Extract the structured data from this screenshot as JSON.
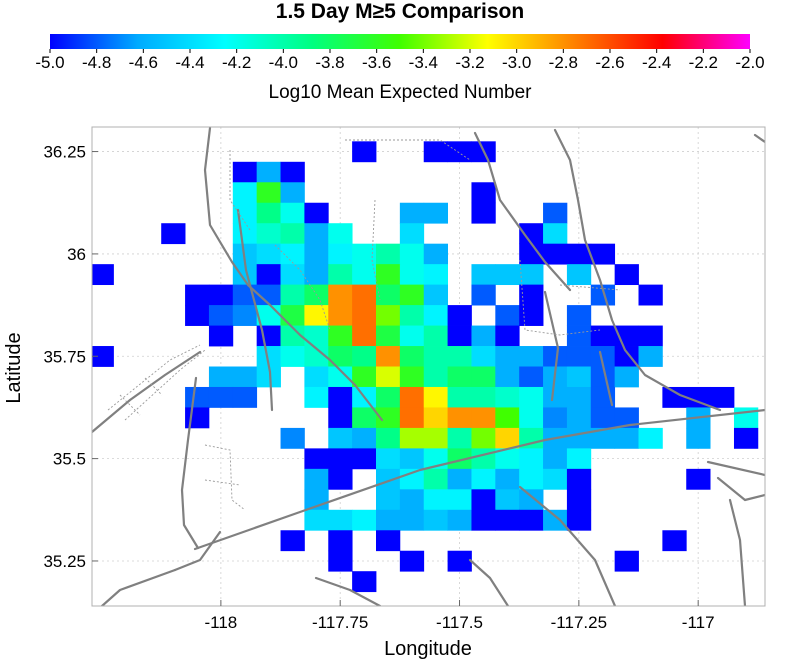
{
  "chart_data": {
    "type": "heatmap",
    "title": "1.5 Day M≥5 Comparison",
    "xlabel": "Longitude",
    "ylabel": "Latitude",
    "xlim": [
      -118.27,
      -116.86
    ],
    "ylim": [
      35.14,
      36.31
    ],
    "xticks": [
      -118,
      -117.75,
      -117.5,
      -117.25,
      -117
    ],
    "xtick_labels": [
      "-118",
      "-117.75",
      "-117.5",
      "-117.25",
      "-117"
    ],
    "yticks": [
      35.25,
      35.5,
      35.75,
      36,
      36.25
    ],
    "ytick_labels": [
      "35.25",
      "35.5",
      "35.75",
      "36",
      "36.25"
    ],
    "grid": true,
    "cell_size_deg": 0.05,
    "colorbar": {
      "label": "Log10 Mean Expected Number",
      "range": [
        -5.0,
        -2.0
      ],
      "ticks": [
        -5.0,
        -4.8,
        -4.6,
        -4.4,
        -4.2,
        -4.0,
        -3.8,
        -3.6,
        -3.4,
        -3.2,
        -3.0,
        -2.8,
        -2.6,
        -2.4,
        -2.2,
        -2.0
      ],
      "tick_labels": [
        "-5.0",
        "-4.8",
        "-4.6",
        "-4.4",
        "-4.2",
        "-4.0",
        "-3.8",
        "-3.6",
        "-3.4",
        "-3.2",
        "-3.0",
        "-2.8",
        "-2.6",
        "-2.4",
        "-2.2",
        "-2.0"
      ],
      "colors": [
        "#0000ff",
        "#00aaff",
        "#00ffff",
        "#00ff80",
        "#40ff00",
        "#ffff00",
        "#ff8000",
        "#ff0000",
        "#ff00ff"
      ]
    },
    "x": [
      -118.25,
      -118.2,
      -118.15,
      -118.1,
      -118.05,
      -118.0,
      -117.95,
      -117.9,
      -117.85,
      -117.8,
      -117.75,
      -117.7,
      -117.65,
      -117.6,
      -117.55,
      -117.5,
      -117.45,
      -117.4,
      -117.35,
      -117.3,
      -117.25,
      -117.2,
      -117.15,
      -117.1,
      -117.05,
      -117.0,
      -116.95,
      -116.9
    ],
    "y": [
      36.25,
      36.2,
      36.15,
      36.1,
      36.05,
      36.0,
      35.95,
      35.9,
      35.85,
      35.8,
      35.75,
      35.7,
      35.65,
      35.6,
      35.55,
      35.5,
      35.45,
      35.4,
      35.35,
      35.3,
      35.25,
      35.2
    ],
    "values": [
      [
        null,
        null,
        null,
        null,
        null,
        null,
        null,
        null,
        null,
        null,
        null,
        -5.0,
        null,
        null,
        -5.0,
        -5.0,
        -5.0,
        null,
        null,
        null,
        null,
        null,
        null,
        null,
        null,
        null,
        null,
        null
      ],
      [
        null,
        null,
        null,
        null,
        null,
        null,
        -5.0,
        -4.6,
        -5.0,
        null,
        null,
        null,
        null,
        null,
        null,
        null,
        null,
        null,
        null,
        null,
        null,
        null,
        null,
        null,
        null,
        null,
        null,
        null
      ],
      [
        null,
        null,
        null,
        null,
        null,
        null,
        -4.3,
        -3.6,
        -4.6,
        null,
        null,
        null,
        null,
        null,
        null,
        null,
        -5.0,
        null,
        null,
        null,
        null,
        null,
        null,
        null,
        null,
        null,
        null,
        null
      ],
      [
        null,
        null,
        null,
        null,
        null,
        null,
        -4.3,
        -3.9,
        -4.2,
        -5.0,
        null,
        null,
        null,
        -4.6,
        -4.6,
        null,
        -5.0,
        null,
        null,
        -4.8,
        null,
        null,
        null,
        null,
        null,
        null,
        null,
        null
      ],
      [
        null,
        null,
        null,
        -5.0,
        null,
        null,
        -4.3,
        -4.1,
        -4.0,
        -4.6,
        -4.2,
        null,
        null,
        -4.4,
        null,
        null,
        null,
        null,
        -5.0,
        -4.4,
        null,
        null,
        null,
        null,
        null,
        null,
        null,
        null
      ],
      [
        null,
        null,
        null,
        null,
        null,
        null,
        -4.5,
        -4.4,
        -4.3,
        -4.6,
        -4.3,
        -4.2,
        -4.0,
        -4.2,
        -4.6,
        null,
        null,
        null,
        -5.0,
        -5.0,
        -5.0,
        -5.0,
        null,
        null,
        null,
        null,
        null,
        null
      ],
      [
        -5.0,
        null,
        null,
        null,
        null,
        null,
        -4.5,
        -5.0,
        -4.4,
        -4.6,
        -4.0,
        -4.2,
        -3.6,
        -4.2,
        -4.3,
        null,
        -4.5,
        -4.5,
        -4.5,
        null,
        -4.5,
        null,
        -5.0,
        null,
        null,
        null,
        null,
        null
      ],
      [
        null,
        null,
        null,
        null,
        -5.0,
        -5.0,
        -4.8,
        -4.8,
        -4.0,
        -3.8,
        -2.8,
        -2.7,
        -3.8,
        -3.6,
        -4.5,
        null,
        -4.8,
        null,
        -5.0,
        null,
        null,
        -4.8,
        null,
        -5.0,
        null,
        null,
        null,
        null
      ],
      [
        null,
        null,
        null,
        null,
        -5.0,
        -4.8,
        -4.7,
        -4.2,
        -3.7,
        -3.1,
        -2.8,
        -2.7,
        -3.4,
        -4.0,
        -4.3,
        -5.0,
        null,
        -4.8,
        -5.0,
        null,
        -4.8,
        null,
        null,
        null,
        null,
        null,
        null,
        null
      ],
      [
        null,
        null,
        null,
        null,
        null,
        -5.0,
        null,
        -5.0,
        -4.0,
        -4.1,
        -3.6,
        -2.7,
        -3.7,
        -4.2,
        -4.0,
        -5.0,
        -4.6,
        -5.0,
        null,
        null,
        -4.8,
        -5.0,
        -5.0,
        -5.0,
        null,
        null,
        null,
        null
      ],
      [
        -5.0,
        null,
        null,
        null,
        null,
        null,
        null,
        -4.4,
        -4.2,
        -4.1,
        -3.8,
        -3.9,
        -2.8,
        -3.8,
        -4.0,
        -4.0,
        -4.4,
        -4.6,
        -4.6,
        -4.8,
        -4.8,
        -4.8,
        -5.0,
        -4.6,
        null,
        null,
        null,
        null
      ],
      [
        null,
        null,
        null,
        null,
        null,
        -4.6,
        -4.6,
        -4.4,
        null,
        -4.4,
        -4.2,
        -3.6,
        -3.2,
        -3.6,
        -4.0,
        -3.8,
        -3.8,
        -4.6,
        -4.8,
        -4.6,
        -4.5,
        -4.8,
        -4.6,
        null,
        null,
        null,
        null,
        null
      ],
      [
        null,
        null,
        null,
        null,
        -4.8,
        -4.8,
        -4.8,
        null,
        null,
        -4.3,
        -5.0,
        -4.3,
        -3.8,
        -2.7,
        -3.1,
        -4.0,
        -4.0,
        -4.1,
        -4.2,
        -4.6,
        -4.6,
        -4.8,
        null,
        null,
        -5.0,
        -5.0,
        -5.0,
        null
      ],
      [
        null,
        null,
        null,
        null,
        -5.0,
        null,
        null,
        null,
        null,
        null,
        -5.0,
        -3.8,
        -3.6,
        -2.7,
        -3.0,
        -2.8,
        -2.8,
        -3.5,
        -4.2,
        -4.7,
        -4.6,
        -4.8,
        -4.8,
        null,
        null,
        -4.6,
        null,
        -4.2
      ],
      [
        null,
        null,
        null,
        null,
        null,
        null,
        null,
        null,
        -4.7,
        null,
        -4.5,
        -4.6,
        -3.9,
        -3.3,
        -3.3,
        -4.0,
        -3.4,
        -3.0,
        -4.0,
        -4.6,
        -4.6,
        -4.6,
        -4.6,
        -4.3,
        null,
        -4.6,
        null,
        -5.0
      ],
      [
        null,
        null,
        null,
        null,
        null,
        null,
        null,
        null,
        null,
        -5.0,
        -5.0,
        -5.0,
        -4.4,
        -4.5,
        -4.2,
        -3.8,
        -4.0,
        -4.2,
        -4.3,
        -4.6,
        -4.3,
        null,
        null,
        null,
        null,
        null,
        null,
        null
      ],
      [
        null,
        null,
        null,
        null,
        null,
        null,
        null,
        null,
        null,
        -4.6,
        -5.0,
        null,
        -4.5,
        -4.3,
        -4.0,
        -4.6,
        -4.3,
        -4.6,
        -4.3,
        -4.4,
        -5.0,
        null,
        null,
        null,
        null,
        -5.0,
        null,
        null
      ],
      [
        null,
        null,
        null,
        null,
        null,
        null,
        null,
        null,
        null,
        -4.6,
        null,
        null,
        -4.5,
        -4.6,
        -4.3,
        -4.3,
        -5.0,
        -4.5,
        -4.6,
        null,
        -5.0,
        null,
        null,
        null,
        null,
        null,
        null,
        null
      ],
      [
        null,
        null,
        null,
        null,
        null,
        null,
        null,
        null,
        null,
        -4.4,
        -4.4,
        -4.3,
        -4.6,
        -4.6,
        -4.5,
        -4.6,
        -5.0,
        -5.0,
        -5.0,
        -4.6,
        -5.0,
        null,
        null,
        null,
        null,
        null,
        null,
        null
      ],
      [
        null,
        null,
        null,
        null,
        null,
        null,
        null,
        null,
        -5.0,
        null,
        -5.0,
        null,
        -5.0,
        null,
        null,
        null,
        null,
        null,
        null,
        null,
        null,
        null,
        null,
        null,
        -5.0,
        null,
        null,
        null
      ],
      [
        null,
        null,
        null,
        null,
        null,
        null,
        null,
        null,
        null,
        null,
        -5.0,
        null,
        null,
        -5.0,
        null,
        -5.0,
        null,
        null,
        null,
        null,
        null,
        null,
        -5.0,
        null,
        null,
        null,
        null,
        null
      ],
      [
        null,
        null,
        null,
        null,
        null,
        null,
        null,
        null,
        null,
        null,
        null,
        -5.0,
        null,
        null,
        null,
        null,
        null,
        null,
        null,
        null,
        null,
        null,
        null,
        null,
        null,
        null,
        null,
        null
      ]
    ]
  }
}
